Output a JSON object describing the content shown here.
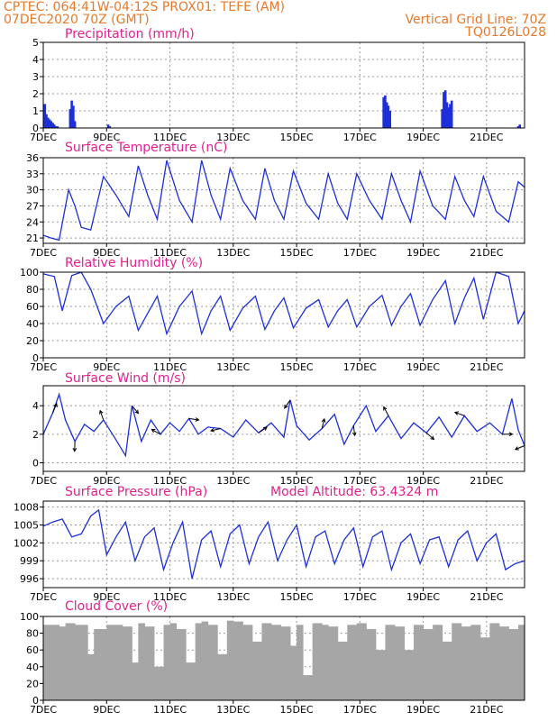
{
  "header": {
    "left_line1": "CPTEC:   064:41W-04:12S   PROX01: TEFE (AM)",
    "left_line2": "07DEC2020 70Z (GMT)",
    "right_line1": "Vertical Grid Line: 70Z",
    "right_line2": "TQ0126L028"
  },
  "x_axis": {
    "ticks": [
      {
        "day": 7,
        "label": "7DEC"
      },
      {
        "day": 9,
        "label": "9DEC"
      },
      {
        "day": 11,
        "label": "11DEC"
      },
      {
        "day": 13,
        "label": "13DEC"
      },
      {
        "day": 15,
        "label": "15DEC"
      },
      {
        "day": 17,
        "label": "17DEC"
      },
      {
        "day": 19,
        "label": "19DEC"
      },
      {
        "day": 21,
        "label": "21DEC"
      }
    ],
    "range_days": [
      7,
      22.2
    ]
  },
  "colors": {
    "header": "#e8792a",
    "title": "#e0218a",
    "series": "#1d2fd8",
    "cloud": "#a6a6a6",
    "grid": "#9a9a9a"
  },
  "chart_data": [
    {
      "type": "bar",
      "title": "Precipitation (mm/h)",
      "ylim": [
        0,
        5
      ],
      "yticks": [
        "0",
        "1",
        "2",
        "3",
        "4",
        "5"
      ],
      "x": [
        7.05,
        7.1,
        7.15,
        7.2,
        7.25,
        7.3,
        7.35,
        7.4,
        7.45,
        7.85,
        7.9,
        7.95,
        8.0,
        9.05,
        9.1,
        17.75,
        17.8,
        17.85,
        17.9,
        17.95,
        19.6,
        19.65,
        19.7,
        19.75,
        19.8,
        19.85,
        19.9,
        22.0,
        22.05
      ],
      "values": [
        1.4,
        0.8,
        0.6,
        0.5,
        0.4,
        0.3,
        0.2,
        0.1,
        0.1,
        1.1,
        1.6,
        1.3,
        0.4,
        0.2,
        0.1,
        1.8,
        1.9,
        1.5,
        1.3,
        1.0,
        1.1,
        2.1,
        2.2,
        1.5,
        1.2,
        1.4,
        1.6,
        0.1,
        0.2
      ]
    },
    {
      "type": "line",
      "title": "Surface Temperature (nC)",
      "ylim": [
        20,
        36
      ],
      "yticks": [
        "21",
        "24",
        "27",
        "30",
        "33",
        "36"
      ],
      "x": [
        7.0,
        7.25,
        7.5,
        7.8,
        8.0,
        8.2,
        8.5,
        8.9,
        9.3,
        9.7,
        10.0,
        10.3,
        10.6,
        10.9,
        11.3,
        11.7,
        12.0,
        12.3,
        12.6,
        12.9,
        13.3,
        13.7,
        14.0,
        14.3,
        14.6,
        14.9,
        15.3,
        15.7,
        16.0,
        16.3,
        16.6,
        16.9,
        17.3,
        17.7,
        18.0,
        18.3,
        18.6,
        18.9,
        19.3,
        19.7,
        20.0,
        20.3,
        20.6,
        20.9,
        21.3,
        21.7,
        22.0,
        22.2
      ],
      "values": [
        21.5,
        21.0,
        20.6,
        30.0,
        27.0,
        23.0,
        22.5,
        32.5,
        29.0,
        25.0,
        34.5,
        29.0,
        24.5,
        35.5,
        28.0,
        24.0,
        35.5,
        29.0,
        24.5,
        34.0,
        28.0,
        24.5,
        34.0,
        28.0,
        24.5,
        33.5,
        27.5,
        24.5,
        33.0,
        27.5,
        24.5,
        33.0,
        28.0,
        24.5,
        33.0,
        28.0,
        24.0,
        33.5,
        27.0,
        24.5,
        32.5,
        28.0,
        25.0,
        32.5,
        26.0,
        24.0,
        31.5,
        30.5
      ]
    },
    {
      "type": "line",
      "title": "Relative Humidity (%)",
      "ylim": [
        0,
        100
      ],
      "yticks": [
        "0",
        "20",
        "40",
        "60",
        "80",
        "100"
      ],
      "x": [
        7.0,
        7.35,
        7.6,
        7.9,
        8.2,
        8.5,
        8.9,
        9.3,
        9.7,
        10.0,
        10.3,
        10.6,
        10.9,
        11.3,
        11.7,
        12.0,
        12.3,
        12.6,
        12.9,
        13.3,
        13.7,
        14.0,
        14.3,
        14.6,
        14.9,
        15.3,
        15.7,
        16.0,
        16.3,
        16.6,
        16.9,
        17.3,
        17.7,
        18.0,
        18.3,
        18.6,
        18.9,
        19.3,
        19.7,
        20.0,
        20.3,
        20.6,
        20.9,
        21.3,
        21.7,
        22.0,
        22.2
      ],
      "values": [
        98,
        95,
        55,
        96,
        100,
        80,
        40,
        60,
        72,
        32,
        52,
        72,
        28,
        60,
        78,
        28,
        55,
        72,
        32,
        58,
        72,
        33,
        55,
        70,
        35,
        58,
        68,
        36,
        55,
        68,
        36,
        60,
        73,
        38,
        60,
        75,
        38,
        68,
        90,
        40,
        70,
        93,
        45,
        100,
        95,
        40,
        55
      ]
    },
    {
      "type": "line",
      "title": "Surface Wind (m/s)",
      "ylim": [
        -0.6,
        5.4
      ],
      "yticks": [
        "0",
        "2",
        "4"
      ],
      "x": [
        7.0,
        7.3,
        7.5,
        7.7,
        8.0,
        8.3,
        8.6,
        8.9,
        9.3,
        9.6,
        9.8,
        10.1,
        10.4,
        10.7,
        11.0,
        11.3,
        11.6,
        11.9,
        12.2,
        12.6,
        13.0,
        13.4,
        13.8,
        14.2,
        14.6,
        14.8,
        15.0,
        15.4,
        15.8,
        16.2,
        16.5,
        16.8,
        17.2,
        17.5,
        17.9,
        18.3,
        18.7,
        19.1,
        19.5,
        19.9,
        20.3,
        20.7,
        21.1,
        21.5,
        21.8,
        22.0,
        22.2
      ],
      "values": [
        2.0,
        3.5,
        4.8,
        3.0,
        1.5,
        2.7,
        2.2,
        3.0,
        1.6,
        0.5,
        4.0,
        1.5,
        3.0,
        2.0,
        2.8,
        2.2,
        3.1,
        2.0,
        2.5,
        2.4,
        1.8,
        3.0,
        2.1,
        2.8,
        1.8,
        4.4,
        2.6,
        1.6,
        2.4,
        3.4,
        1.3,
        2.6,
        4.0,
        2.2,
        3.3,
        1.7,
        2.8,
        2.1,
        3.2,
        1.8,
        3.3,
        2.2,
        2.8,
        2.0,
        4.5,
        2.3,
        1.2
      ]
    },
    {
      "type": "line",
      "title": "Surface Pressure (hPa)",
      "annotation": "Model Altitude: 63.4324 m",
      "ylim": [
        994.5,
        1009
      ],
      "yticks": [
        "996",
        "999",
        "1002",
        "1005",
        "1008"
      ],
      "x": [
        7.0,
        7.3,
        7.6,
        7.9,
        8.2,
        8.5,
        8.75,
        9.0,
        9.3,
        9.6,
        9.9,
        10.2,
        10.5,
        10.8,
        11.1,
        11.4,
        11.7,
        12.0,
        12.3,
        12.6,
        12.9,
        13.2,
        13.5,
        13.8,
        14.1,
        14.4,
        14.7,
        15.0,
        15.3,
        15.6,
        15.9,
        16.2,
        16.5,
        16.8,
        17.1,
        17.4,
        17.7,
        18.0,
        18.3,
        18.6,
        18.9,
        19.2,
        19.5,
        19.8,
        20.1,
        20.4,
        20.7,
        21.0,
        21.3,
        21.6,
        21.9,
        22.2
      ],
      "values": [
        1004.8,
        1005.5,
        1006.0,
        1003.0,
        1003.5,
        1006.5,
        1007.5,
        1000.0,
        1003.0,
        1005.5,
        999.0,
        1003.0,
        1004.5,
        997.5,
        1002.0,
        1005.5,
        996.0,
        1002.5,
        1004.0,
        998.0,
        1003.5,
        1005.0,
        998.5,
        1003.0,
        1005.5,
        999.0,
        1002.5,
        1005.0,
        998.0,
        1003.0,
        1004.0,
        998.5,
        1002.5,
        1004.5,
        998.0,
        1003.0,
        1004.0,
        997.5,
        1002.0,
        1003.5,
        998.5,
        1002.5,
        1003.0,
        998.0,
        1002.5,
        1004.0,
        999.0,
        1002.0,
        1003.5,
        997.5,
        998.5,
        999.0
      ]
    },
    {
      "type": "area",
      "title": "Cloud Cover (%)",
      "ylim": [
        0,
        100
      ],
      "yticks": [
        "0",
        "20",
        "40",
        "60",
        "80",
        "100"
      ],
      "x": [
        7.0,
        7.5,
        7.7,
        8.0,
        8.4,
        8.6,
        9.0,
        9.5,
        9.8,
        10.0,
        10.2,
        10.5,
        10.8,
        11.0,
        11.2,
        11.5,
        11.8,
        12.0,
        12.2,
        12.5,
        12.8,
        13.0,
        13.3,
        13.6,
        13.9,
        14.2,
        14.5,
        14.8,
        15.0,
        15.2,
        15.5,
        15.8,
        16.0,
        16.3,
        16.6,
        16.9,
        17.2,
        17.5,
        17.8,
        18.1,
        18.4,
        18.7,
        19.0,
        19.3,
        19.6,
        19.9,
        20.2,
        20.5,
        20.8,
        21.1,
        21.4,
        21.7,
        22.0,
        22.2
      ],
      "values": [
        90,
        88,
        92,
        90,
        55,
        85,
        90,
        88,
        45,
        92,
        88,
        40,
        90,
        92,
        85,
        45,
        92,
        94,
        90,
        55,
        95,
        94,
        90,
        70,
        92,
        90,
        88,
        65,
        90,
        30,
        92,
        90,
        88,
        70,
        90,
        92,
        85,
        60,
        90,
        88,
        60,
        90,
        85,
        90,
        70,
        92,
        88,
        90,
        75,
        92,
        88,
        85,
        90,
        92
      ]
    }
  ]
}
